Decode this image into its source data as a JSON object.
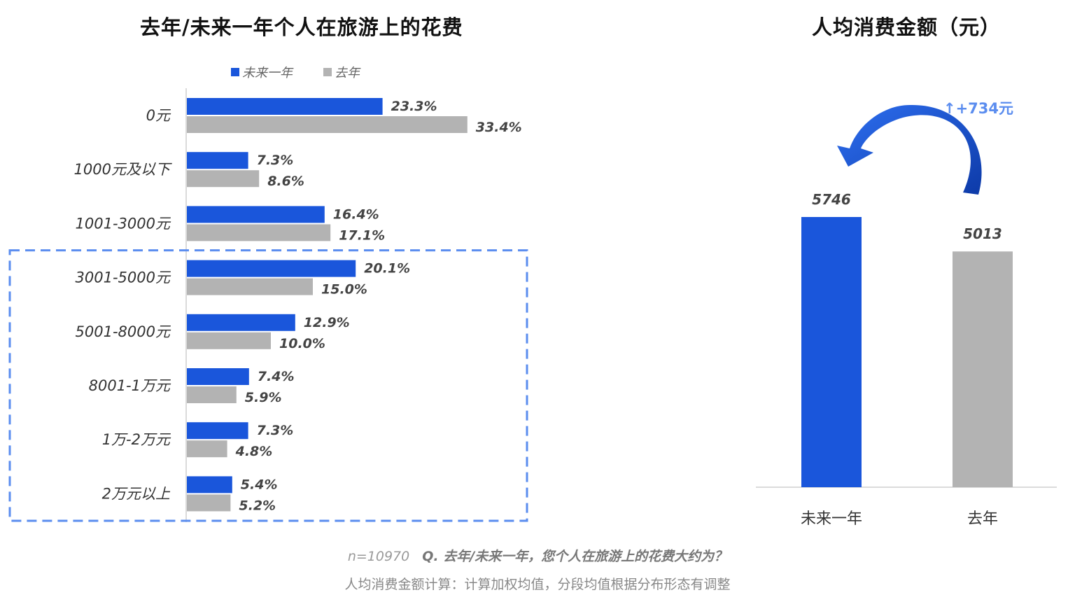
{
  "left_title": "去年/未来一年个人在旅游上的花费",
  "right_title": "人均消费金额（元）",
  "legend": [
    {
      "label": "未来一年",
      "color": "#1a56db"
    },
    {
      "label": "去年",
      "color": "#b3b3b3"
    }
  ],
  "chart_data": [
    {
      "type": "bar",
      "orientation": "horizontal",
      "title": "去年/未来一年个人在旅游上的花费",
      "categories": [
        "0元",
        "1000元及以下",
        "1001-3000元",
        "3001-5000元",
        "5001-8000元",
        "8001-1万元",
        "1万-2万元",
        "2万元以上"
      ],
      "series": [
        {
          "name": "未来一年",
          "color": "#1a56db",
          "values": [
            23.3,
            7.3,
            16.4,
            20.1,
            12.9,
            7.4,
            7.3,
            5.4
          ],
          "labels": [
            "23.3%",
            "7.3%",
            "16.4%",
            "20.1%",
            "12.9%",
            "7.4%",
            "7.3%",
            "5.4%"
          ]
        },
        {
          "name": "去年",
          "color": "#b3b3b3",
          "values": [
            33.4,
            8.6,
            17.1,
            15.0,
            10.0,
            5.9,
            4.8,
            5.2
          ],
          "labels": [
            "33.4%",
            "8.6%",
            "17.1%",
            "15.0%",
            "10.0%",
            "5.9%",
            "4.8%",
            "5.2%"
          ]
        }
      ],
      "highlight_box": {
        "from_category": "3001-5000元",
        "to_category": "2万元以上",
        "style": "dashed",
        "color": "#5b8def"
      }
    },
    {
      "type": "bar",
      "orientation": "vertical",
      "title": "人均消费金额（元）",
      "categories": [
        "未来一年",
        "去年"
      ],
      "values": [
        5746,
        5013
      ],
      "labels": [
        "5746",
        "5013"
      ],
      "colors": [
        "#1a56db",
        "#b3b3b3"
      ],
      "annotation": "↑+734元"
    }
  ],
  "footer": {
    "n": "n=10970",
    "question": "Q. 去年/未来一年，您个人在旅游上的花费大约为？",
    "note": "人均消费金额计算：计算加权均值，分段均值根据分布形态有调整"
  }
}
